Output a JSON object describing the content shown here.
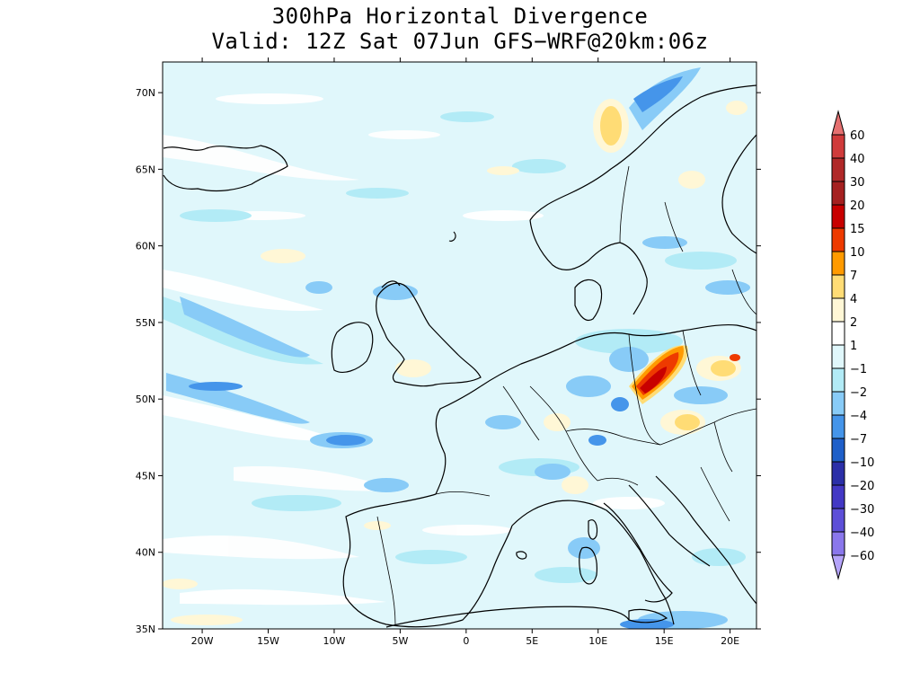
{
  "title": {
    "line1": "300hPa Horizontal Divergence",
    "line2": "Valid: 12Z Sat 07Jun GFS−WRF@20km:06z"
  },
  "map": {
    "lon_range": [
      -23,
      22
    ],
    "lat_range": [
      35,
      72
    ],
    "lat_ticks": [
      "35N",
      "40N",
      "45N",
      "50N",
      "55N",
      "60N",
      "65N",
      "70N"
    ],
    "lon_ticks": [
      "20W",
      "15W",
      "10W",
      "5W",
      "0",
      "5E",
      "10E",
      "15E",
      "20E"
    ],
    "background_color": "#e0f7fb"
  },
  "colorbar": {
    "labels": [
      "60",
      "40",
      "30",
      "20",
      "15",
      "10",
      "7",
      "4",
      "2",
      "1",
      "−1",
      "−2",
      "−4",
      "−7",
      "−10",
      "−20",
      "−30",
      "−40",
      "−60"
    ],
    "colors": [
      "#e57070",
      "#d03b3b",
      "#b02828",
      "#a52020",
      "#c80000",
      "#ee3a00",
      "#ff9a00",
      "#ffdc75",
      "#fff7d6",
      "#ffffff",
      "#e0f7fb",
      "#b2ebf6",
      "#88cbf7",
      "#4595ea",
      "#1e5fc9",
      "#2b2fa8",
      "#4338c5",
      "#5d4fd8",
      "#8a77ec",
      "#b5a4fa"
    ]
  }
}
